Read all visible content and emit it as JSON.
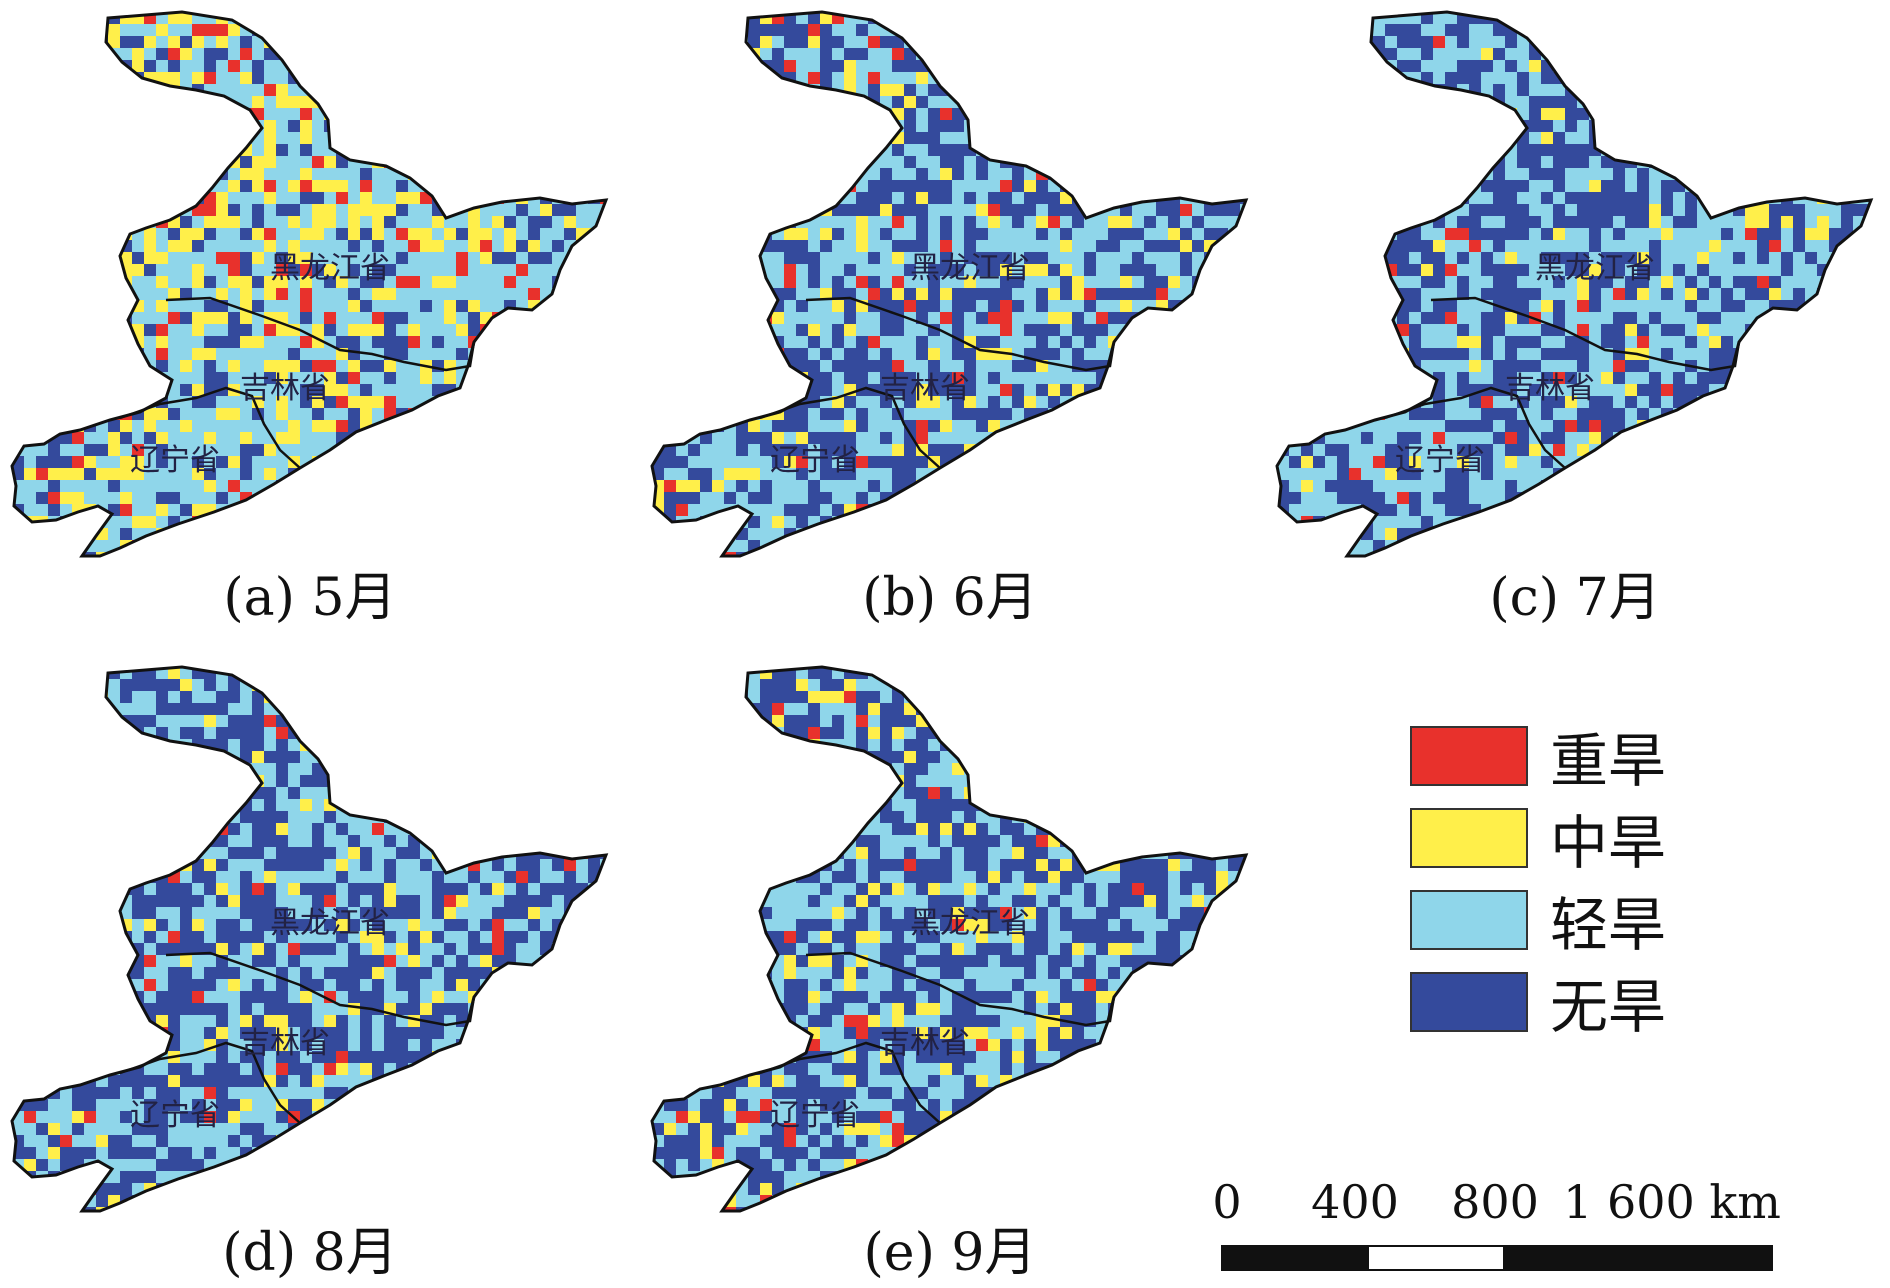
{
  "panels": [
    {
      "caption": "(a) 5月",
      "seed": 11,
      "weights": {
        "red": 0.07,
        "yellow": 0.26,
        "light": 0.47,
        "dark": 0.2
      }
    },
    {
      "caption": "(b) 6月",
      "seed": 23,
      "weights": {
        "red": 0.04,
        "yellow": 0.1,
        "light": 0.46,
        "dark": 0.4
      }
    },
    {
      "caption": "(c) 7月",
      "seed": 37,
      "weights": {
        "red": 0.03,
        "yellow": 0.06,
        "light": 0.45,
        "dark": 0.46
      }
    },
    {
      "caption": "(d) 8月",
      "seed": 41,
      "weights": {
        "red": 0.03,
        "yellow": 0.08,
        "light": 0.4,
        "dark": 0.49
      }
    },
    {
      "caption": "(e) 9月",
      "seed": 53,
      "weights": {
        "red": 0.03,
        "yellow": 0.12,
        "light": 0.35,
        "dark": 0.5
      }
    }
  ],
  "province_labels": {
    "heilongjiang": "黑龙江省",
    "jilin": "吉林省",
    "liaoning": "辽宁省"
  },
  "legend": [
    {
      "label": "重旱",
      "color": "#e8312c"
    },
    {
      "label": "中旱",
      "color": "#ffef4a"
    },
    {
      "label": "轻旱",
      "color": "#8fd6ea"
    },
    {
      "label": "无旱",
      "color": "#344a9c"
    }
  ],
  "scale": {
    "ticks": [
      "0",
      "400",
      "800",
      "1 600 km"
    ]
  }
}
